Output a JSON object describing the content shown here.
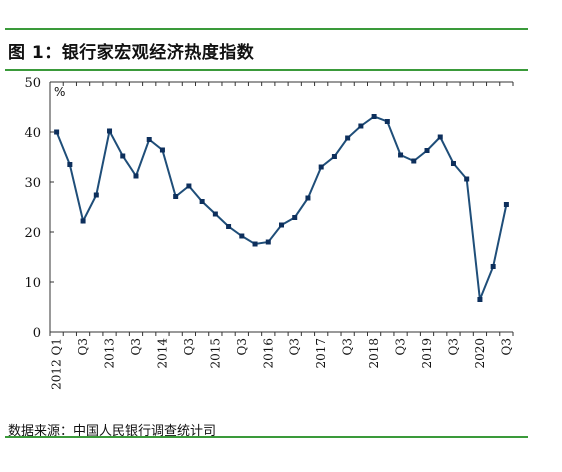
{
  "figure": {
    "title": "图 1：银行家宏观经济热度指数",
    "source": "数据来源：中国人民银行调查统计司",
    "rule_color": "#3a9a3a",
    "line_color": "#1f4e79",
    "marker_color": "#0d2f5c"
  },
  "chart_data": {
    "type": "line",
    "title": "图 1：银行家宏观经济热度指数",
    "xlabel": "",
    "ylabel": "%",
    "ylim": [
      0,
      50
    ],
    "yticks": [
      0,
      10,
      20,
      30,
      40,
      50
    ],
    "grid": false,
    "legend": "none",
    "x": [
      "2012 Q1",
      "Q2",
      "Q3",
      "Q4",
      "2013 Q1",
      "Q2",
      "Q3",
      "Q4",
      "2014 Q1",
      "Q2",
      "Q3",
      "Q4",
      "2015 Q1",
      "Q2",
      "Q3",
      "Q4",
      "2016 Q1",
      "Q2",
      "Q3",
      "Q4",
      "2017 Q1",
      "Q2",
      "Q3",
      "Q4",
      "2018 Q1",
      "Q2",
      "Q3",
      "Q4",
      "2019 Q1",
      "Q2",
      "Q3",
      "Q4",
      "2020 Q1",
      "Q2",
      "Q3"
    ],
    "tick_labels": [
      "2012 Q1",
      "Q3",
      "2013",
      "Q3",
      "2014",
      "Q3",
      "2015",
      "Q3",
      "2016",
      "Q3",
      "2017",
      "Q3",
      "2018",
      "Q3",
      "2019",
      "Q3",
      "2020",
      "Q3"
    ],
    "series": [
      {
        "values": [
          40.0,
          33.5,
          22.2,
          27.4,
          40.2,
          35.2,
          31.2,
          38.5,
          36.4,
          27.1,
          29.2,
          26.1,
          23.6,
          21.1,
          19.2,
          17.6,
          18.0,
          21.4,
          22.9,
          26.8,
          33.0,
          35.1,
          38.8,
          41.2,
          43.1,
          42.1,
          35.4,
          34.2,
          36.3,
          39.0,
          33.7,
          30.6,
          6.5,
          13.1,
          25.5
        ]
      }
    ]
  }
}
